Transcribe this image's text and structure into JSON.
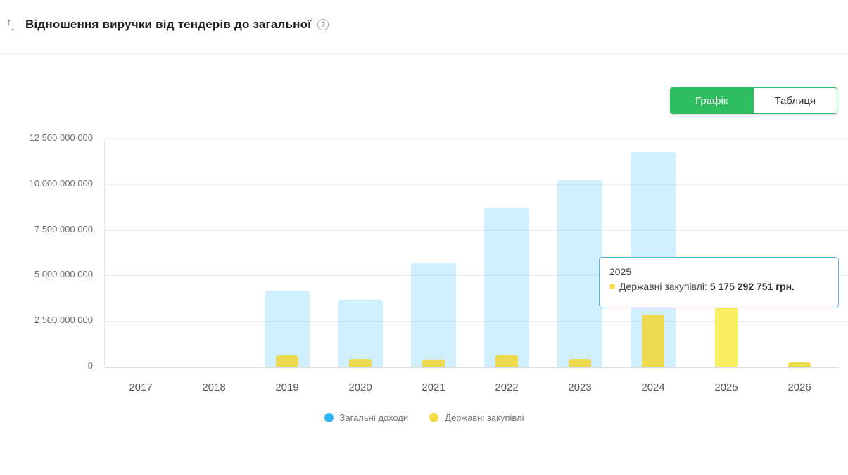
{
  "header": {
    "title": "Відношення виручки від тендерів до загальної"
  },
  "icons": {
    "sort_up": "↑",
    "sort_down": "↓",
    "help": "?"
  },
  "toolbar": {
    "chart_tab": "Графік",
    "table_tab": "Таблиця"
  },
  "colors": {
    "accent_green": "#2ebd5f",
    "bar_blue": "rgba(41,182,246,0.22)",
    "bar_yellow": "#ecd94e",
    "bar_yellow_highlight": "#f9ef60",
    "legend_blue": "#29b6f6",
    "legend_yellow": "#f2dd49",
    "tooltip_border": "#55b8e8"
  },
  "tooltip": {
    "year": "2025",
    "series_label": "Державні закупівлі:",
    "value_text": "5 175 292 751 грн."
  },
  "chart_data": {
    "type": "bar",
    "title": "Відношення виручки від тендерів до загальної",
    "categories": [
      "2017",
      "2018",
      "2019",
      "2020",
      "2021",
      "2022",
      "2023",
      "2024",
      "2025",
      "2026"
    ],
    "series": [
      {
        "name": "Загальні доходи",
        "key": "total-revenue",
        "values": [
          0,
          0,
          4170000000,
          3660000000,
          5670000000,
          8700000000,
          10220000000,
          11770000000,
          0,
          0
        ]
      },
      {
        "name": "Державні закупівлі",
        "key": "procurement",
        "values": [
          0,
          0,
          620000000,
          430000000,
          390000000,
          650000000,
          430000000,
          2850000000,
          5175292751,
          250000000
        ]
      }
    ],
    "highlight": {
      "category": "2025",
      "series": "Державні закупівлі"
    },
    "ylim": [
      0,
      12500000000
    ],
    "ytick_labels": [
      "12 500 000 000",
      "10 000 000 000",
      "7 500 000 000",
      "5 000 000 000",
      "2 500 000 000",
      "0"
    ],
    "ytick_values": [
      12500000000,
      10000000000,
      7500000000,
      5000000000,
      2500000000,
      0
    ],
    "grid": true,
    "legend_position": "bottom",
    "unit": "грн."
  }
}
